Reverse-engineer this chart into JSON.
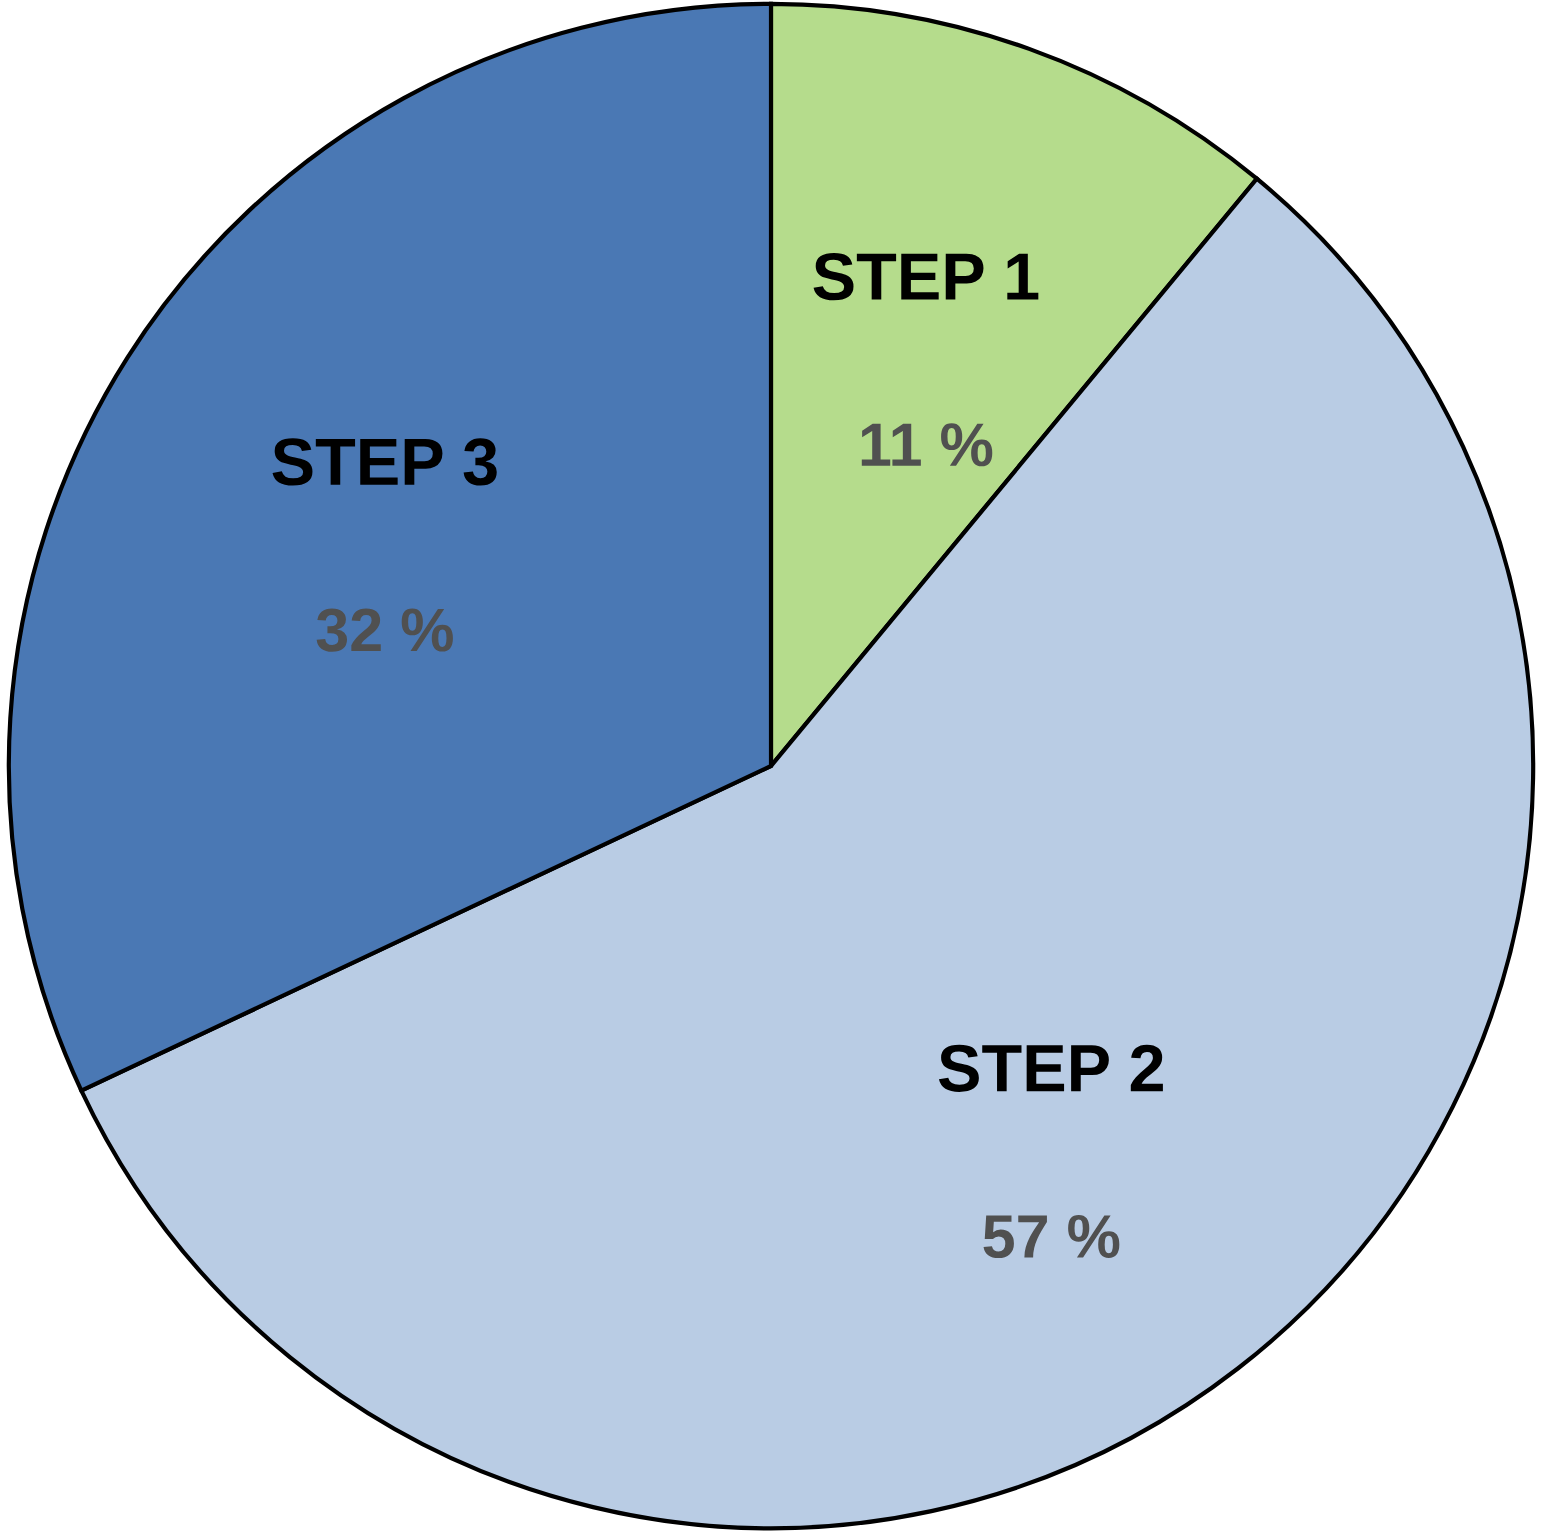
{
  "chart_data": {
    "type": "pie",
    "categories": [
      "STEP 1",
      "STEP 2",
      "STEP 3"
    ],
    "values": [
      11,
      57,
      32
    ],
    "value_labels": [
      "11 %",
      "57 %",
      "32 %"
    ],
    "colors": [
      "#b5dc8c",
      "#b9cce4",
      "#4a78b4"
    ]
  }
}
